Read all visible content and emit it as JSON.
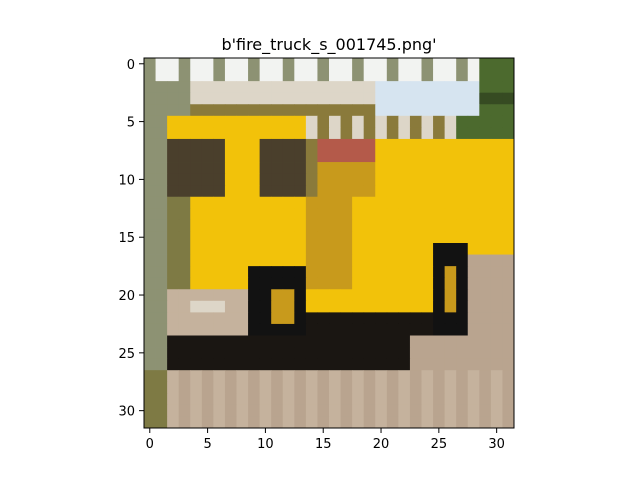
{
  "figure": {
    "title": "b'fire_truck_s_001745.png'",
    "image_grid": {
      "rows": 32,
      "cols": 32
    },
    "x_axis": {
      "ticks": [
        "0",
        "5",
        "10",
        "15",
        "20",
        "25",
        "30"
      ]
    },
    "y_axis": {
      "ticks": [
        "0",
        "5",
        "10",
        "15",
        "20",
        "25",
        "30"
      ]
    }
  },
  "palette": {
    "sky_white": "#f2f3f1",
    "sky_pale_blue": "#d6e4f0",
    "tree_green": "#4c6a2e",
    "tree_dark": "#364b22",
    "bg_grey_green": "#8d9273",
    "truck_yellow": "#f2c20a",
    "truck_yellow_dark": "#c89a1c",
    "truck_olive": "#8a7a3b",
    "window_dark": "#4a3f2c",
    "tire_black": "#121212",
    "shadow_black": "#1a1612",
    "road_tan": "#b9a48f",
    "road_light": "#c5b29d",
    "chrome_light": "#ddd6c8",
    "grass_olive": "#7e7a44",
    "red_light": "#b45a4a"
  }
}
